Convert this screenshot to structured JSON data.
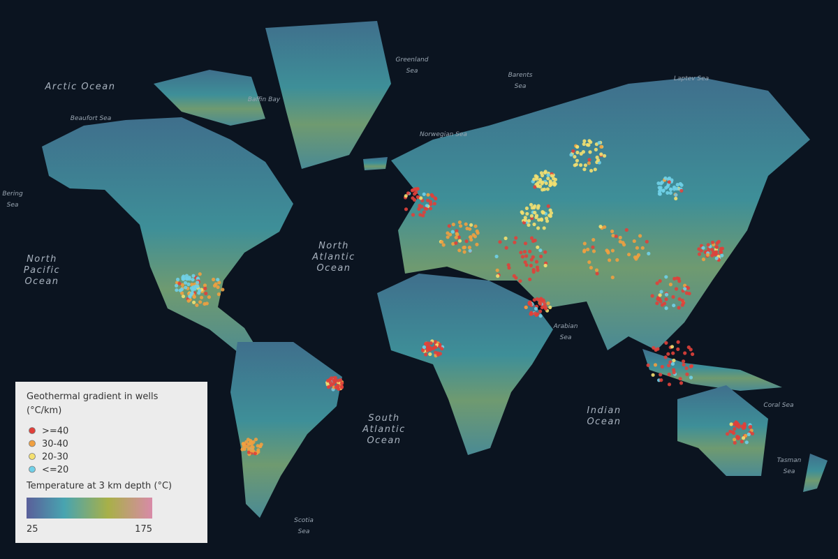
{
  "map": {
    "labels": {
      "arctic": [
        "Arctic Ocean"
      ],
      "greenland_sea": [
        "Greenland",
        "Sea"
      ],
      "barents": [
        "Barents",
        "Sea"
      ],
      "laptev": [
        "Laptev Sea"
      ],
      "beaufort": [
        "Beaufort Sea"
      ],
      "baffin": [
        "Baffin Bay"
      ],
      "norwegian": [
        "Norwegian Sea"
      ],
      "bering": [
        "Bering",
        "Sea"
      ],
      "north_pacific": [
        "North",
        "Pacific",
        "Ocean"
      ],
      "north_atlantic": [
        "North",
        "Atlantic",
        "Ocean"
      ],
      "south_atlantic": [
        "South",
        "Atlantic",
        "Ocean"
      ],
      "indian": [
        "Indian",
        "Ocean"
      ],
      "arabian": [
        "Arabian",
        "Sea"
      ],
      "coral": [
        "Coral Sea"
      ],
      "tasman": [
        "Tasman",
        "Sea"
      ],
      "scotia": [
        "Scotia",
        "Sea"
      ]
    },
    "legend": {
      "title": [
        "Geothermal gradient in wells",
        "(°C/km)"
      ],
      "items": [
        {
          "label": ">=40",
          "color": "#e0403a"
        },
        {
          "label": "30-40",
          "color": "#f0a040"
        },
        {
          "label": "20-30",
          "color": "#f4e070"
        },
        {
          "label": "<=20",
          "color": "#70d0e8"
        }
      ],
      "colorbar_title": "Temperature at 3 km depth (°C)",
      "colorbar_min": 25,
      "colorbar_max": 175
    }
  }
}
